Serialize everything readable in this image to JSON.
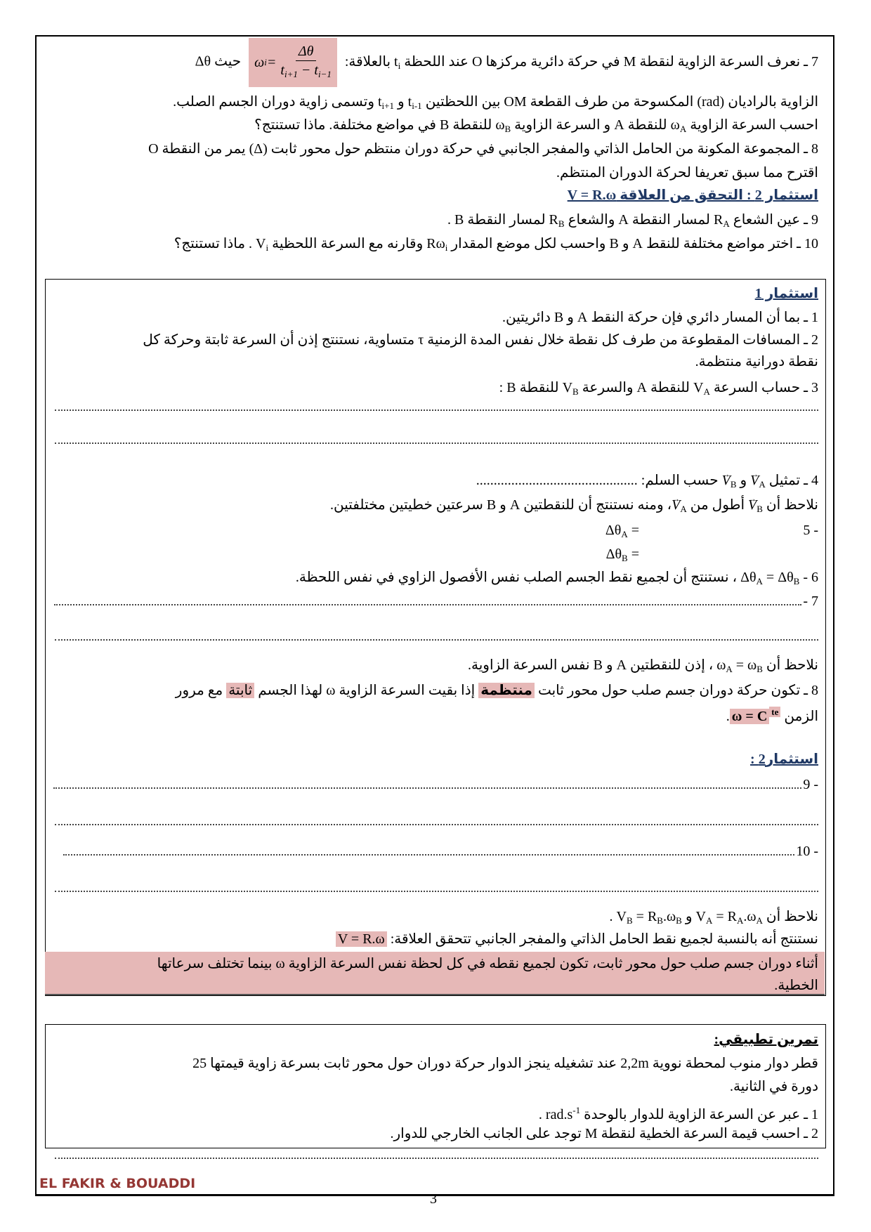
{
  "top": {
    "l1": [
      "7 ـ نعرف السرعة الزاوية لنقطة M في حركة دائرية مركزها O عند اللحظة t",
      {
        "t": "i",
        "s": "sub"
      },
      " بالعلاقة:"
    ],
    "formula": {
      "lhs": "ω",
      "lhs_sub": "i",
      "eq": " =",
      "num": "Δθ",
      "den_a": "t",
      "den_a_sub": "i+1",
      "den_minus": " − ",
      "den_b": "t",
      "den_b_sub": "i−1"
    },
    "l1_tail": "حيث Δθ",
    "l2": [
      "الزاوية بالراديان (rad) المكسوحة من طرف القطعة OM بين اللحظتين t",
      {
        "t": "i-1",
        "s": "sub"
      },
      " و t",
      {
        "t": "i+1",
        "s": "sub"
      },
      " وتسمى زاوية دوران الجسم الصلب."
    ],
    "l3": [
      "احسب السرعة الزاوية ω",
      {
        "t": "A",
        "s": "sub"
      },
      " للنقطة A و السرعة الزاوية ω",
      {
        "t": "B",
        "s": "sub"
      },
      " للنقطة B في مواضع مختلفة. ماذا تستنتج؟"
    ],
    "l4": [
      "8 ـ المجموعة المكونة من الحامل الذاتي والمفجر الجانبي في حركة دوران منتظم حول محور ثابت (Δ) يمر من النقطة O"
    ],
    "l5": [
      "اقترح مما سبق تعريفا لحركة الدوران المنتظم."
    ],
    "heading": "استثمار 2 : التحقق من العلاقة V = R.ω",
    "l9": [
      "9 ـ عين الشعاع R",
      {
        "t": "A",
        "s": "sub"
      },
      " لمسار النقطة A والشعاع R",
      {
        "t": "B",
        "s": "sub"
      },
      " لمسار النقطة B ."
    ],
    "l10": [
      "10 ـ اختر مواضع مختلفة للنقط A و B واحسب لكل موضع المقدار Rω",
      {
        "t": "i",
        "s": "sub"
      },
      " وقارنه مع السرعة اللحظية V",
      {
        "t": "i",
        "s": "sub"
      },
      " . ماذا تستنتج؟"
    ]
  },
  "box1": {
    "heading": "استثمار 1",
    "a1": [
      "1 ـ بما أن المسار دائري فإن حركة النقط A و B دائريتين."
    ],
    "a2a": [
      "2 ـ المسافات المقطوعة من طرف كل نقطة خلال نفس المدة الزمنية τ متساوية، نستنتج إذن أن السرعة ثابتة وحركة كل"
    ],
    "a2b": [
      "نقطة دورانية منتظمة."
    ],
    "a3": [
      "3 ـ حساب السرعة V",
      {
        "t": "A",
        "s": "sub"
      },
      " للنقطة A والسرعة V",
      {
        "t": "B",
        "s": "sub"
      },
      " للنقطة B :"
    ],
    "a4": [
      "4 ـ تمثيل ",
      {
        "t": "V",
        "s": "vec"
      },
      {
        "t": "A",
        "s": "sub"
      },
      " و ",
      {
        "t": "V",
        "s": "vec"
      },
      {
        "t": "B",
        "s": "sub"
      },
      " حسب السلم: ",
      {
        "t": "..............................................",
        "s": ""
      }
    ],
    "a4b": [
      "نلاحظ أن ",
      {
        "t": "V",
        "s": "vec"
      },
      {
        "t": "B",
        "s": "sub"
      },
      " أطول من ",
      {
        "t": "V",
        "s": "vec"
      },
      {
        "t": "A",
        "s": "sub"
      },
      "، ومنه نستنتج أن للنقطتين A و B سرعتين خطيتين مختلفتين."
    ],
    "a5_label": "- 5",
    "a5a": [
      "Δθ",
      {
        "t": "A",
        "s": "sub"
      },
      " ="
    ],
    "a5b": [
      "Δθ",
      {
        "t": "B",
        "s": "sub"
      },
      " ="
    ],
    "a6": [
      "6 - Δθ",
      {
        "t": "A",
        "s": "sub"
      },
      " = Δθ",
      {
        "t": "B",
        "s": "sub"
      },
      " ، نستنتج أن لجميع نقط الجسم الصلب نفس الأفصول الزاوي في نفس اللحظة."
    ],
    "a7_label": "7 -",
    "a7c": [
      "نلاحظ أن ω",
      {
        "t": "A",
        "s": "sub"
      },
      " = ω",
      {
        "t": "B",
        "s": "sub"
      },
      " ، إذن للنقطتين A و B نفس السرعة الزاوية."
    ],
    "a8a": [
      "8 ـ تكون حركة دوران جسم صلب حول محور ثابت ",
      {
        "t": "منتظمة",
        "s": "hl b"
      },
      " إذا بقيت السرعة الزاوية ω لهذا الجسم ",
      {
        "t": "ثابتة",
        "s": "hl"
      },
      " مع مرور"
    ],
    "a8b": [
      "الزمن ",
      {
        "t": "ω = C",
        "s": "hl b"
      },
      {
        "t": "te",
        "s": "sup hl b"
      },
      "."
    ],
    "heading2": "استثمار2 :",
    "a9_label": "- 9",
    "a10_label": "- 10",
    "c1": [
      "نلاحظ أن V",
      {
        "t": "A",
        "s": "sub"
      },
      " = R",
      {
        "t": "A",
        "s": "sub"
      },
      ".ω",
      {
        "t": "A",
        "s": "sub"
      },
      " و V",
      {
        "t": "B",
        "s": "sub"
      },
      " = R",
      {
        "t": "B",
        "s": "sub"
      },
      ".ω",
      {
        "t": "B",
        "s": "sub"
      },
      " ."
    ],
    "c2": [
      "نستنتج أنه بالنسبة لجميع نقط الحامل الذاتي والمفجر الجانبي تتحقق العلاقة: ",
      {
        "t": "V = R.ω",
        "s": "hl"
      }
    ],
    "c3a": [
      "أثناء دوران جسم صلب حول محور ثابت، تكون لجميع نقطه في كل لحظة نفس السرعة الزاوية ω بينما تختلف سرعاتها"
    ],
    "c3b": [
      "الخطية."
    ]
  },
  "exercise": {
    "heading": "تمرين تطبيقي:",
    "e1": [
      "قطر دوار منوب لمحطة نووية 2,2m عند تشغيله ينجز الدوار حركة دوران حول محور ثابت بسرعة زاوية قيمتها 25"
    ],
    "e2": [
      "دورة في الثانية."
    ],
    "e3": [
      "1 ـ عبر عن السرعة الزاوية للدوار بالوحدة rad.s",
      {
        "t": "-1",
        "s": "sup"
      },
      " ."
    ],
    "e4": [
      "2 ـ احسب قيمة السرعة الخطية لنقطة M توجد على الجانب الخارجي للدوار."
    ]
  },
  "footer": {
    "authors": "EL FAKIR & BOUADDI",
    "page": "3"
  },
  "colors": {
    "highlight": "#e6b8b7",
    "heading": "#1f3864",
    "footer": "#953734"
  }
}
